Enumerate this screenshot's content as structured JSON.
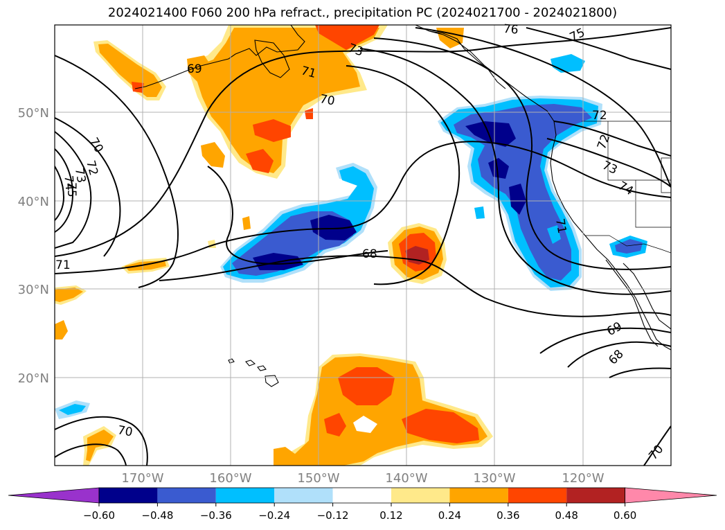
{
  "title": "2024021400 F060 200 hPa refract., precipitation PC (2024021700 - 2024021800)",
  "lat_labels": [
    "50°N",
    "40°N",
    "30°N",
    "20°N"
  ],
  "lon_labels": [
    "170°W",
    "160°W",
    "150°W",
    "140°W",
    "130°W",
    "120°W"
  ],
  "colorbar": {
    "ticks": [
      "−0.60",
      "−0.48",
      "−0.36",
      "−0.24",
      "−0.12",
      "0.12",
      "0.24",
      "0.36",
      "0.48",
      "0.60"
    ],
    "colors": [
      "#9932cc",
      "#00008b",
      "#3a5bd0",
      "#00bfff",
      "#b0e0fa",
      "#ffffff",
      "#ffe98a",
      "#ffa500",
      "#ff4500",
      "#b22222",
      "#ff88aa"
    ]
  },
  "contour_labels": [
    "76",
    "75",
    "73",
    "72",
    "71",
    "70",
    "69",
    "68",
    "74",
    "73",
    "72",
    "71",
    "70",
    "69",
    "68",
    "70",
    "71",
    "72",
    "73",
    "74",
    "75",
    "70"
  ],
  "colors": {
    "orange": "#ffa500",
    "orange_red": "#ff4500",
    "light_yellow": "#ffe98a",
    "navy": "#00008b",
    "royal_blue": "#3a5bd0",
    "sky_blue": "#00bfff",
    "firebrick": "#b22222",
    "grid": "#b0b0b0",
    "label_grey": "#808080"
  }
}
